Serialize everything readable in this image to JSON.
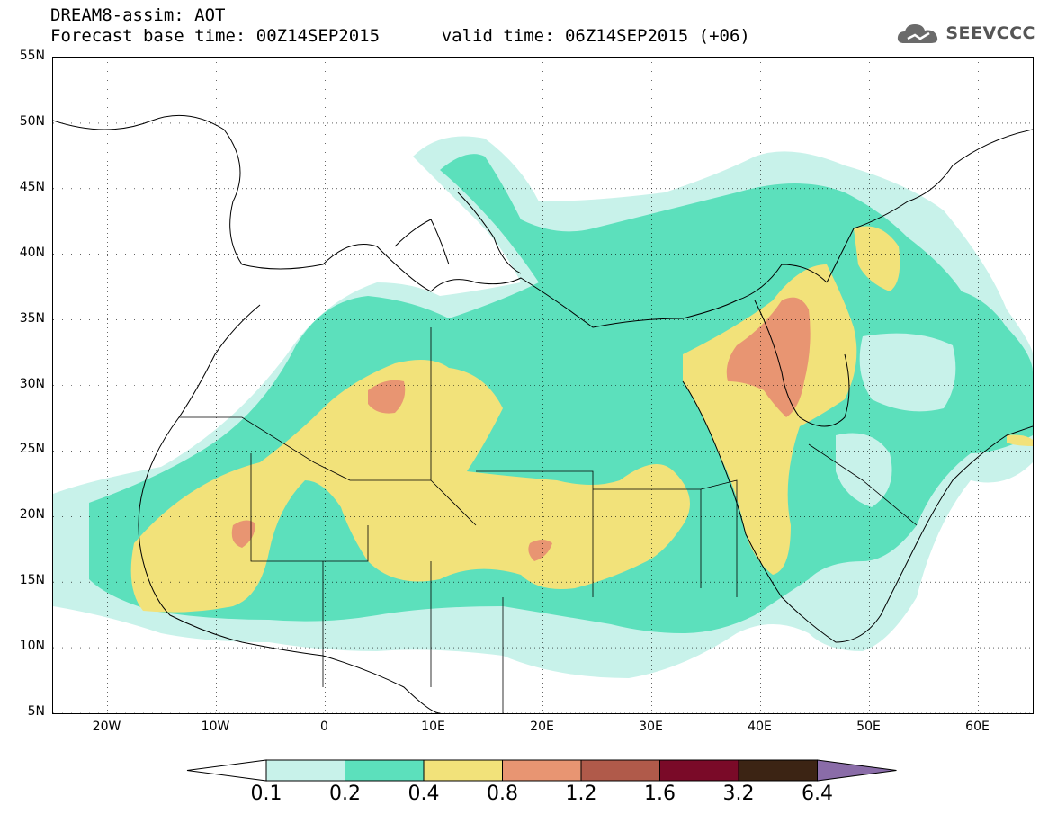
{
  "header": {
    "title_line1": "DREAM8-assim: AOT",
    "base_time_label": "Forecast base time: 00Z14SEP2015",
    "valid_time_label": "valid time: 06Z14SEP2015 (+06)",
    "logo_text": "SEEVCCC",
    "logo_icon": "cloud-icon"
  },
  "map": {
    "lon_range": [
      -25,
      65
    ],
    "lat_range": [
      5,
      55
    ],
    "lat_ticks": [
      "55N",
      "50N",
      "45N",
      "40N",
      "35N",
      "30N",
      "25N",
      "20N",
      "15N",
      "10N",
      "5N"
    ],
    "lon_ticks": [
      "20W",
      "10W",
      "0",
      "10E",
      "20E",
      "30E",
      "40E",
      "50E",
      "60E"
    ],
    "grid": "dotted"
  },
  "colorbar": {
    "levels": [
      "0.1",
      "0.2",
      "0.4",
      "0.8",
      "1.2",
      "1.6",
      "3.2",
      "6.4"
    ],
    "colors": [
      "#c8f2ea",
      "#5ce0bc",
      "#f2e27a",
      "#e89572",
      "#b05a4a",
      "#7a0a28",
      "#3c2414",
      "#8a6ca8"
    ],
    "under_color": "#ffffff",
    "over_color": "#8a6ca8"
  }
}
